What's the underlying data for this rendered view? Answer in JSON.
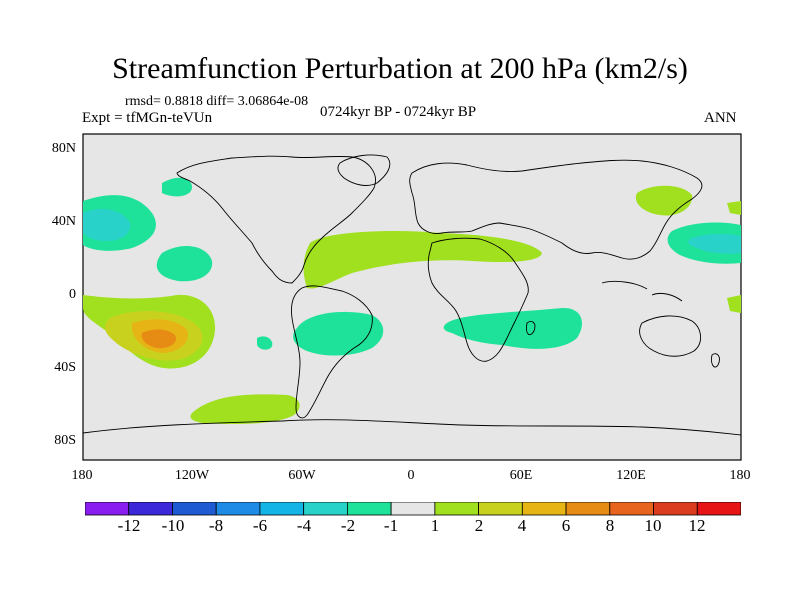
{
  "title": "Streamfunction Perturbation at 200 hPa (km2/s)",
  "stats": "rmsd= 0.8818 diff= 3.06864e-08",
  "experiment": "Expt = tfMGn-teVUn",
  "period": "0724kyr BP - 0724kyr BP",
  "season": "ANN",
  "lat_labels": [
    "80N",
    "40N",
    "0",
    "40S",
    "80S"
  ],
  "lon_labels": [
    "180",
    "120W",
    "60W",
    "0",
    "60E",
    "120E",
    "180"
  ],
  "colorbar": {
    "labels": [
      "-12",
      "-10",
      "-8",
      "-6",
      "-4",
      "-2",
      "-1",
      "1",
      "2",
      "4",
      "6",
      "8",
      "10",
      "12"
    ],
    "colors": [
      "#8a1ef0",
      "#3c28d8",
      "#1e5ad2",
      "#1e8ce6",
      "#14b4e6",
      "#28d2c8",
      "#1ee29a",
      "#e6e6e6",
      "#a0e01e",
      "#c8d21e",
      "#e6b414",
      "#e68c14",
      "#e6641e",
      "#dc3c1e",
      "#e61414"
    ]
  },
  "map_fill": "#e6e6e6"
}
